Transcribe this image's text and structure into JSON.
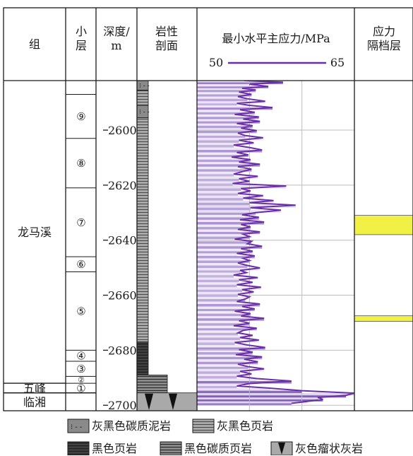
{
  "headers": {
    "formation": "组",
    "sublayer": "小\n层",
    "depth": "深度/\nm",
    "lithology": "岩性\n剖面",
    "stress_title": "最小水平主应力/MPa",
    "stress_min_label": "50",
    "stress_max_label": "65",
    "barrier": "应力\n隔档层"
  },
  "formations": [
    {
      "name": "龙马溪",
      "top": 2582,
      "bottom": 2692
    },
    {
      "name": "五峰",
      "top": 2692,
      "bottom": 2695.5
    },
    {
      "name": "临湘",
      "top": 2695.5,
      "bottom": 2702
    }
  ],
  "sublayers": [
    {
      "label": "",
      "top": 2582,
      "bottom": 2587
    },
    {
      "label": "⑨",
      "top": 2587,
      "bottom": 2603
    },
    {
      "label": "⑧",
      "top": 2603,
      "bottom": 2621
    },
    {
      "label": "⑦",
      "top": 2621,
      "bottom": 2646
    },
    {
      "label": "⑥",
      "top": 2646,
      "bottom": 2651.5
    },
    {
      "label": "⑤",
      "top": 2651.5,
      "bottom": 2680
    },
    {
      "label": "④",
      "top": 2680,
      "bottom": 2684
    },
    {
      "label": "③",
      "top": 2684,
      "bottom": 2689.5
    },
    {
      "label": "②",
      "top": 2689.5,
      "bottom": 2692
    },
    {
      "label": "①",
      "top": 2692,
      "bottom": 2695.5
    }
  ],
  "legend": [
    {
      "swatch": "carb-mudstone",
      "label": "灰黑色碳质泥岩"
    },
    {
      "swatch": "grey-shale",
      "label": "灰黑色页岩"
    },
    {
      "swatch": "black-shale",
      "label": "黑色页岩"
    },
    {
      "swatch": "black-carb-shale",
      "label": "黑色碳质页岩"
    },
    {
      "swatch": "nodular-limestone",
      "label": "灰色瘤状灰岩"
    }
  ],
  "colors": {
    "curve": "#6a2fa8",
    "fill_light": "#ddd3ee",
    "fill_dark": "#7e55b8",
    "barrier": "#f0f045",
    "grid": "#bdbdbd"
  },
  "chart_data": {
    "type": "line",
    "title": "最小水平主应力/MPa",
    "xlabel": "最小水平主应力/MPa",
    "ylabel": "深度/m",
    "xlim": [
      50,
      65
    ],
    "ylim": [
      2582,
      2702
    ],
    "y_ticks": [
      2600,
      2620,
      2640,
      2660,
      2680,
      2700
    ],
    "grid": true,
    "series": [
      {
        "depth": [
          2582.0,
          2582.6,
          2583.3,
          2584.1,
          2584.8,
          2585.4,
          2586.2,
          2587.0,
          2587.8,
          2588.6,
          2589.5,
          2590.3,
          2591.0,
          2591.8,
          2592.6,
          2593.5,
          2594.3,
          2595.2,
          2596.0,
          2596.8,
          2597.6,
          2598.4,
          2599.3,
          2600.2,
          2601.1,
          2602.0,
          2602.8,
          2603.7,
          2604.6,
          2605.4,
          2606.3,
          2607.2,
          2608.1,
          2609.0,
          2609.8,
          2610.7,
          2611.6,
          2612.4,
          2613.3,
          2614.2,
          2615.1,
          2616.0,
          2616.8,
          2617.7,
          2618.6,
          2619.4,
          2620.3,
          2621.2,
          2622.1,
          2623.0,
          2623.8,
          2624.7,
          2625.6,
          2626.4,
          2627.3,
          2628.2,
          2629.1,
          2630.0,
          2630.8,
          2631.7,
          2632.6,
          2633.4,
          2634.3,
          2635.2,
          2636.1,
          2637.0,
          2637.8,
          2638.7,
          2639.6,
          2640.4,
          2641.3,
          2642.2,
          2643.1,
          2644.0,
          2644.8,
          2645.7,
          2646.6,
          2647.4,
          2648.3,
          2649.2,
          2650.1,
          2651.0,
          2651.8,
          2652.7,
          2653.6,
          2654.4,
          2655.3,
          2656.2,
          2657.1,
          2658.0,
          2658.8,
          2659.7,
          2660.6,
          2661.4,
          2662.3,
          2663.2,
          2664.1,
          2665.0,
          2665.8,
          2666.7,
          2667.6,
          2668.4,
          2669.3,
          2670.2,
          2671.1,
          2672.0,
          2672.8,
          2673.7,
          2674.6,
          2675.4,
          2676.3,
          2677.2,
          2678.1,
          2679.0,
          2679.8,
          2680.7,
          2681.6,
          2682.4,
          2683.3,
          2684.2,
          2685.1,
          2686.0,
          2686.8,
          2687.7,
          2688.6,
          2689.4,
          2690.3,
          2691.2,
          2692.1,
          2693.0,
          2693.8,
          2694.7,
          2695.6,
          2696.4,
          2697.2,
          2697.9,
          2698.6,
          2699.3,
          2700.0,
          2700.7,
          2701.3,
          2702.0
        ],
        "stress": [
          54.5,
          58.2,
          55.0,
          56.8,
          54.3,
          55.6,
          54.0,
          55.2,
          53.9,
          54.8,
          56.5,
          53.8,
          55.0,
          57.2,
          54.1,
          55.5,
          53.6,
          55.9,
          54.4,
          56.0,
          53.8,
          55.3,
          54.2,
          55.7,
          53.9,
          54.6,
          56.3,
          54.0,
          55.4,
          53.5,
          55.0,
          56.2,
          53.8,
          54.9,
          53.3,
          55.1,
          54.0,
          56.0,
          53.9,
          55.2,
          54.3,
          53.5,
          55.8,
          54.0,
          55.0,
          53.4,
          58.5,
          54.2,
          55.1,
          53.9,
          56.3,
          54.4,
          57.3,
          55.0,
          59.4,
          55.1,
          58.0,
          55.6,
          54.3,
          55.9,
          54.1,
          56.4,
          54.2,
          55.1,
          53.9,
          56.0,
          54.4,
          55.0,
          53.6,
          55.2,
          54.8,
          56.2,
          54.2,
          55.3,
          53.8,
          55.5,
          54.4,
          55.0,
          53.9,
          54.8,
          56.0,
          54.1,
          54.7,
          53.5,
          55.8,
          54.0,
          55.3,
          53.8,
          56.1,
          54.3,
          55.4,
          53.9,
          55.0,
          54.6,
          53.8,
          56.0,
          54.3,
          55.5,
          53.6,
          55.1,
          54.2,
          56.4,
          54.0,
          55.0,
          53.5,
          55.7,
          54.4,
          53.9,
          55.3,
          54.1,
          55.9,
          53.6,
          54.8,
          56.5,
          54.0,
          55.3,
          53.7,
          56.2,
          54.5,
          55.8,
          53.9,
          54.9,
          56.4,
          54.1,
          55.2,
          53.8,
          55.7,
          59.0,
          55.0,
          53.8,
          57.0,
          60.0,
          65.0,
          64.2,
          61.5,
          62.0,
          60.5,
          59.0
        ]
      }
    ]
  },
  "barriers": [
    {
      "top": 2631,
      "bottom": 2638
    },
    {
      "top": 2667.5,
      "bottom": 2669.5
    }
  ]
}
